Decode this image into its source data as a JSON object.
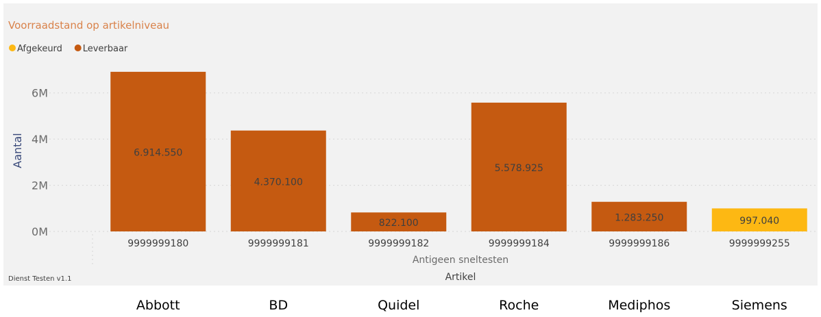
{
  "chart_data": {
    "type": "bar",
    "title": "Voorraadstand op artikelniveau",
    "xlabel": "Artikel",
    "x_group_label": "Antigeen sneltesten",
    "ylabel": "Aantal",
    "ylim": [
      0,
      7000000
    ],
    "y_ticks": [
      {
        "value": 0,
        "label": "0M"
      },
      {
        "value": 2000000,
        "label": "2M"
      },
      {
        "value": 4000000,
        "label": "4M"
      },
      {
        "value": 6000000,
        "label": "6M"
      }
    ],
    "grid": true,
    "legend": [
      {
        "name": "Afgekeurd",
        "color": "#FDB813"
      },
      {
        "name": "Leverbaar",
        "color": "#C55A11"
      }
    ],
    "legend_position": "top-left",
    "categories": [
      "9999999180",
      "9999999181",
      "9999999182",
      "9999999184",
      "9999999186",
      "9999999255"
    ],
    "series": [
      {
        "name": "Leverbaar",
        "color": "#C55A11",
        "values": [
          6914550,
          4370100,
          822100,
          5578925,
          1283250,
          null
        ]
      },
      {
        "name": "Afgekeurd",
        "color": "#FDB813",
        "values": [
          null,
          null,
          null,
          null,
          null,
          997040
        ]
      }
    ],
    "data_labels": [
      "6.914.550",
      "4.370.100",
      "822.100",
      "5.578.925",
      "1.283.250",
      "997.040"
    ],
    "footer": "Dienst Testen v1.1",
    "manufacturers": [
      "Abbott",
      "BD",
      "Quidel",
      "Roche",
      "Mediphos",
      "Siemens"
    ]
  },
  "colors": {
    "panel_bg": "#F2F2F2",
    "title": "#D9824A",
    "axis_text": "#6B6B6B",
    "label_text": "#3F3F3F",
    "ylabel": "#3A4A7A"
  }
}
